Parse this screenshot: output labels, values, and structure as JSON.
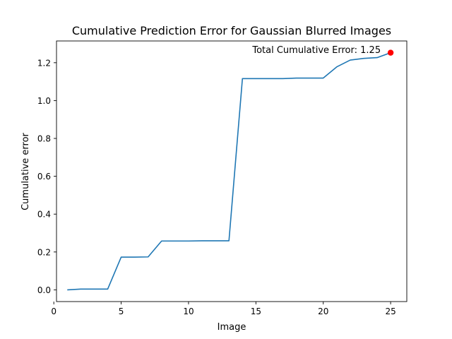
{
  "chart_data": {
    "type": "line",
    "title": "Cumulative Prediction Error for Gaussian Blurred Images",
    "xlabel": "Image",
    "ylabel": "Cumulative error",
    "xlim": [
      0.2,
      26.2
    ],
    "ylim": [
      -0.062,
      1.315
    ],
    "xticks": [
      0,
      5,
      10,
      15,
      20,
      25
    ],
    "yticks": [
      0.0,
      0.2,
      0.4,
      0.6,
      0.8,
      1.0,
      1.2
    ],
    "xtick_labels": [
      "0",
      "5",
      "10",
      "15",
      "20",
      "25"
    ],
    "ytick_labels": [
      "0.0",
      "0.2",
      "0.4",
      "0.6",
      "0.8",
      "1.0",
      "1.2"
    ],
    "grid": false,
    "series": [
      {
        "color": "#1f77b4",
        "x": [
          1,
          2,
          3,
          4,
          5,
          6,
          7,
          8,
          9,
          10,
          11,
          12,
          13,
          14,
          15,
          16,
          17,
          18,
          19,
          20,
          21,
          22,
          23,
          24,
          25
        ],
        "y": [
          0.0,
          0.004,
          0.004,
          0.004,
          0.173,
          0.173,
          0.174,
          0.258,
          0.258,
          0.258,
          0.259,
          0.259,
          0.259,
          1.116,
          1.116,
          1.116,
          1.116,
          1.119,
          1.119,
          1.119,
          1.178,
          1.214,
          1.223,
          1.227,
          1.253
        ]
      }
    ],
    "highlight_point": {
      "x": 25,
      "y": 1.253,
      "color": "#ff0000"
    },
    "annotation": {
      "text": "Total Cumulative Error: 1.25",
      "x": 25,
      "y": 1.253
    }
  }
}
